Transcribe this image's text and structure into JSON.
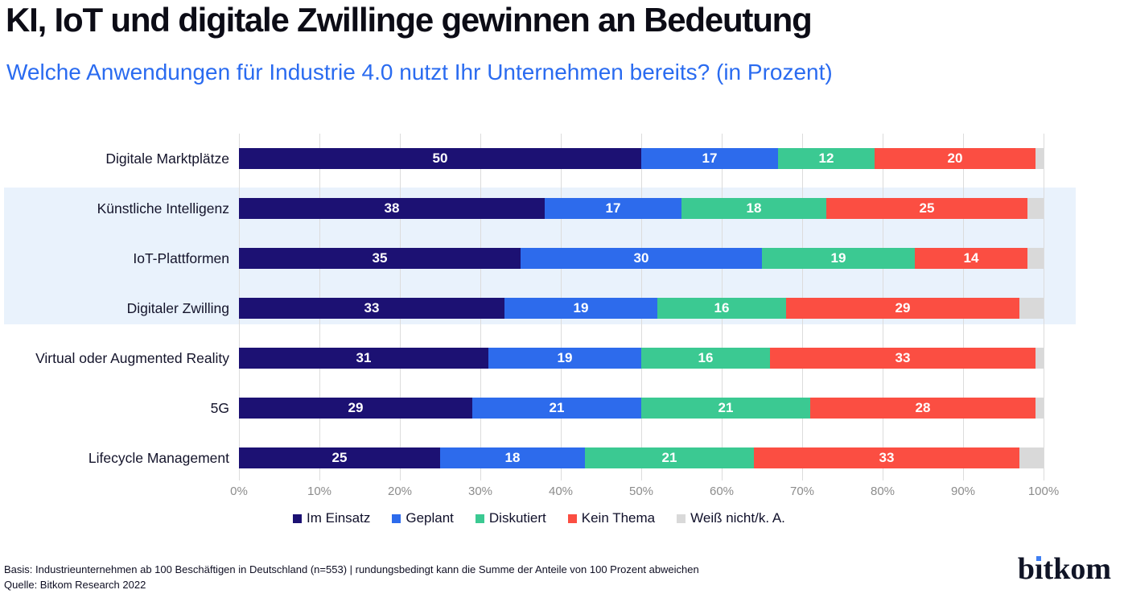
{
  "header": {
    "title": "KI, IoT und digitale Zwillinge gewinnen an Bedeutung",
    "subtitle": "Welche Anwendungen für Industrie 4.0 nutzt Ihr Unternehmen bereits? (in Prozent)"
  },
  "chart_data": {
    "type": "bar",
    "orientation": "horizontal",
    "stacked": true,
    "categories": [
      "Digitale Marktplätze",
      "Künstliche Intelligenz",
      "IoT-Plattformen",
      "Digitaler Zwilling",
      "Virtual oder Augmented Reality",
      "5G",
      "Lifecycle Management"
    ],
    "series": [
      {
        "name": "Im Einsatz",
        "color": "#1c1173",
        "show_labels": true,
        "values": [
          50,
          38,
          35,
          33,
          31,
          29,
          25
        ]
      },
      {
        "name": "Geplant",
        "color": "#2d6bec",
        "show_labels": true,
        "values": [
          17,
          17,
          30,
          19,
          19,
          21,
          18
        ]
      },
      {
        "name": "Diskutiert",
        "color": "#3bc992",
        "show_labels": true,
        "values": [
          12,
          18,
          19,
          16,
          16,
          21,
          21
        ]
      },
      {
        "name": "Kein Thema",
        "color": "#fb4e42",
        "show_labels": true,
        "values": [
          20,
          25,
          14,
          29,
          33,
          28,
          33
        ]
      },
      {
        "name": "Weiß nicht/k. A.",
        "color": "#d9d9d9",
        "show_labels": false,
        "values": [
          1,
          2,
          2,
          3,
          1,
          1,
          3
        ]
      }
    ],
    "x_ticks": [
      "0%",
      "10%",
      "20%",
      "30%",
      "40%",
      "50%",
      "60%",
      "70%",
      "80%",
      "90%",
      "100%"
    ],
    "xlim": [
      0,
      100
    ],
    "grid": true,
    "legend_position": "bottom",
    "highlight": {
      "categories": [
        "Künstliche Intelligenz",
        "IoT-Plattformen",
        "Digitaler Zwilling"
      ],
      "color": "#e9f2fc"
    }
  },
  "footer": {
    "basis": "Basis: Industrieunternehmen ab 100 Beschäftigen in Deutschland (n=553) | rundungsbedingt kann die Summe der Anteile von 100 Prozent abweichen",
    "source": "Quelle: Bitkom Research 2022",
    "logo_text_before": "b",
    "logo_text_i": "ı",
    "logo_text_after": "tkom"
  }
}
